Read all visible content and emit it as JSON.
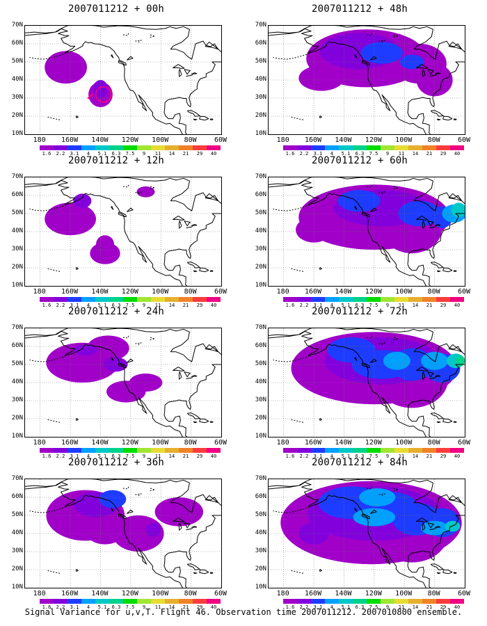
{
  "panels": [
    {
      "title": "2007011212 + 00h",
      "col": 0,
      "row": 0,
      "level": 0
    },
    {
      "title": "2007011212 + 12h",
      "col": 0,
      "row": 1,
      "level": 1
    },
    {
      "title": "2007011212 + 24h",
      "col": 0,
      "row": 2,
      "level": 2
    },
    {
      "title": "2007011212 + 36h",
      "col": 0,
      "row": 3,
      "level": 3
    },
    {
      "title": "2007011212 + 48h",
      "col": 1,
      "row": 0,
      "level": 4
    },
    {
      "title": "2007011212 + 60h",
      "col": 1,
      "row": 1,
      "level": 5
    },
    {
      "title": "2007011212 + 72h",
      "col": 1,
      "row": 2,
      "level": 6
    },
    {
      "title": "2007011212 + 84h",
      "col": 1,
      "row": 3,
      "level": 7
    }
  ],
  "lat_labels": [
    "70N",
    "60N",
    "50N",
    "40N",
    "30N",
    "20N",
    "10N"
  ],
  "lon_labels": [
    "180",
    "160W",
    "140W",
    "120W",
    "100W",
    "80W",
    "60W"
  ],
  "colorbar": {
    "colors": [
      "#a000c8",
      "#8200dc",
      "#1e3cff",
      "#00a0ff",
      "#00c8c8",
      "#00d28c",
      "#00dc00",
      "#a0e632",
      "#e6dc32",
      "#e6af2d",
      "#f08228",
      "#fa3c3c",
      "#f00082"
    ],
    "labels": [
      "1.6",
      "2.2",
      "3.1",
      "4",
      "5.1",
      "6.3",
      "7.5",
      "9",
      "11",
      "14",
      "21",
      "29",
      "40"
    ]
  },
  "caption": "Signal Variance for u,v,T. Flight 46. Observation time 2007011212. 2007010800 ensemble."
}
